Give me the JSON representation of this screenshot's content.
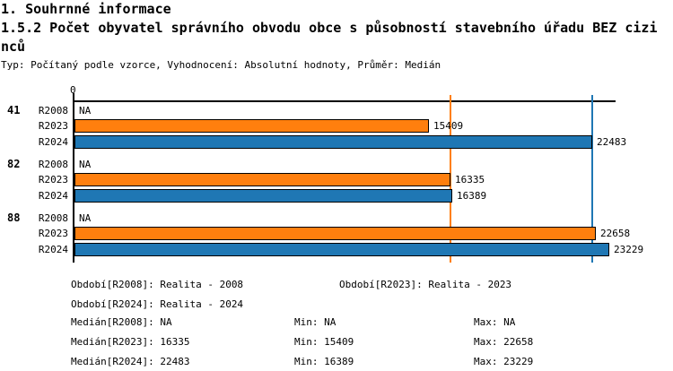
{
  "page": {
    "heading1": "1. Souhrnné informace",
    "heading2": "1.5.2 Počet obyvatel správního obvodu obce s působností stavebního úřadu BEZ cizinců",
    "meta": "Typ: Počítaný podle vzorce, Vyhodnocení: Absolutní hodnoty, Průměr: Medián"
  },
  "chart_data": {
    "type": "bar",
    "orientation": "horizontal",
    "title": "1.5.2 Počet obyvatel správního obvodu obce s působností stavebního úřadu BEZ cizinců",
    "axis": {
      "origin_label": "0",
      "xlim": [
        0,
        23500
      ]
    },
    "colors": {
      "R2023": "#FF7F0E",
      "R2024": "#1F77B4",
      "axis": "#000000"
    },
    "legend_position": "none",
    "grid": false,
    "reference_lines": [
      {
        "name": "median-R2023",
        "value": 16335,
        "color_key": "R2023"
      },
      {
        "name": "median-R2024",
        "value": 22483,
        "color_key": "R2024"
      }
    ],
    "groups": [
      {
        "label": "41",
        "bars": [
          {
            "series": "R2008",
            "value": null,
            "display": "NA"
          },
          {
            "series": "R2023",
            "value": 15409,
            "display": "15409"
          },
          {
            "series": "R2024",
            "value": 22483,
            "display": "22483"
          }
        ]
      },
      {
        "label": "82",
        "bars": [
          {
            "series": "R2008",
            "value": null,
            "display": "NA"
          },
          {
            "series": "R2023",
            "value": 16335,
            "display": "16335"
          },
          {
            "series": "R2024",
            "value": 16389,
            "display": "16389"
          }
        ]
      },
      {
        "label": "88",
        "bars": [
          {
            "series": "R2008",
            "value": null,
            "display": "NA"
          },
          {
            "series": "R2023",
            "value": 22658,
            "display": "22658"
          },
          {
            "series": "R2024",
            "value": 23229,
            "display": "23229"
          }
        ]
      }
    ]
  },
  "legend": {
    "periods": [
      {
        "label": "Období[R2008]:",
        "value": "Realita - 2008"
      },
      {
        "label": "Období[R2023]:",
        "value": "Realita - 2023"
      },
      {
        "label": "Období[R2024]:",
        "value": "Realita - 2024"
      }
    ],
    "stats": [
      {
        "median_label": "Medián[R2008]:",
        "median": "NA",
        "min_label": "Min:",
        "min": "NA",
        "max_label": "Max:",
        "max": "NA"
      },
      {
        "median_label": "Medián[R2023]:",
        "median": "16335",
        "min_label": "Min:",
        "min": "15409",
        "max_label": "Max:",
        "max": "22658"
      },
      {
        "median_label": "Medián[R2024]:",
        "median": "22483",
        "min_label": "Min:",
        "min": "16389",
        "max_label": "Max:",
        "max": "23229"
      }
    ]
  }
}
